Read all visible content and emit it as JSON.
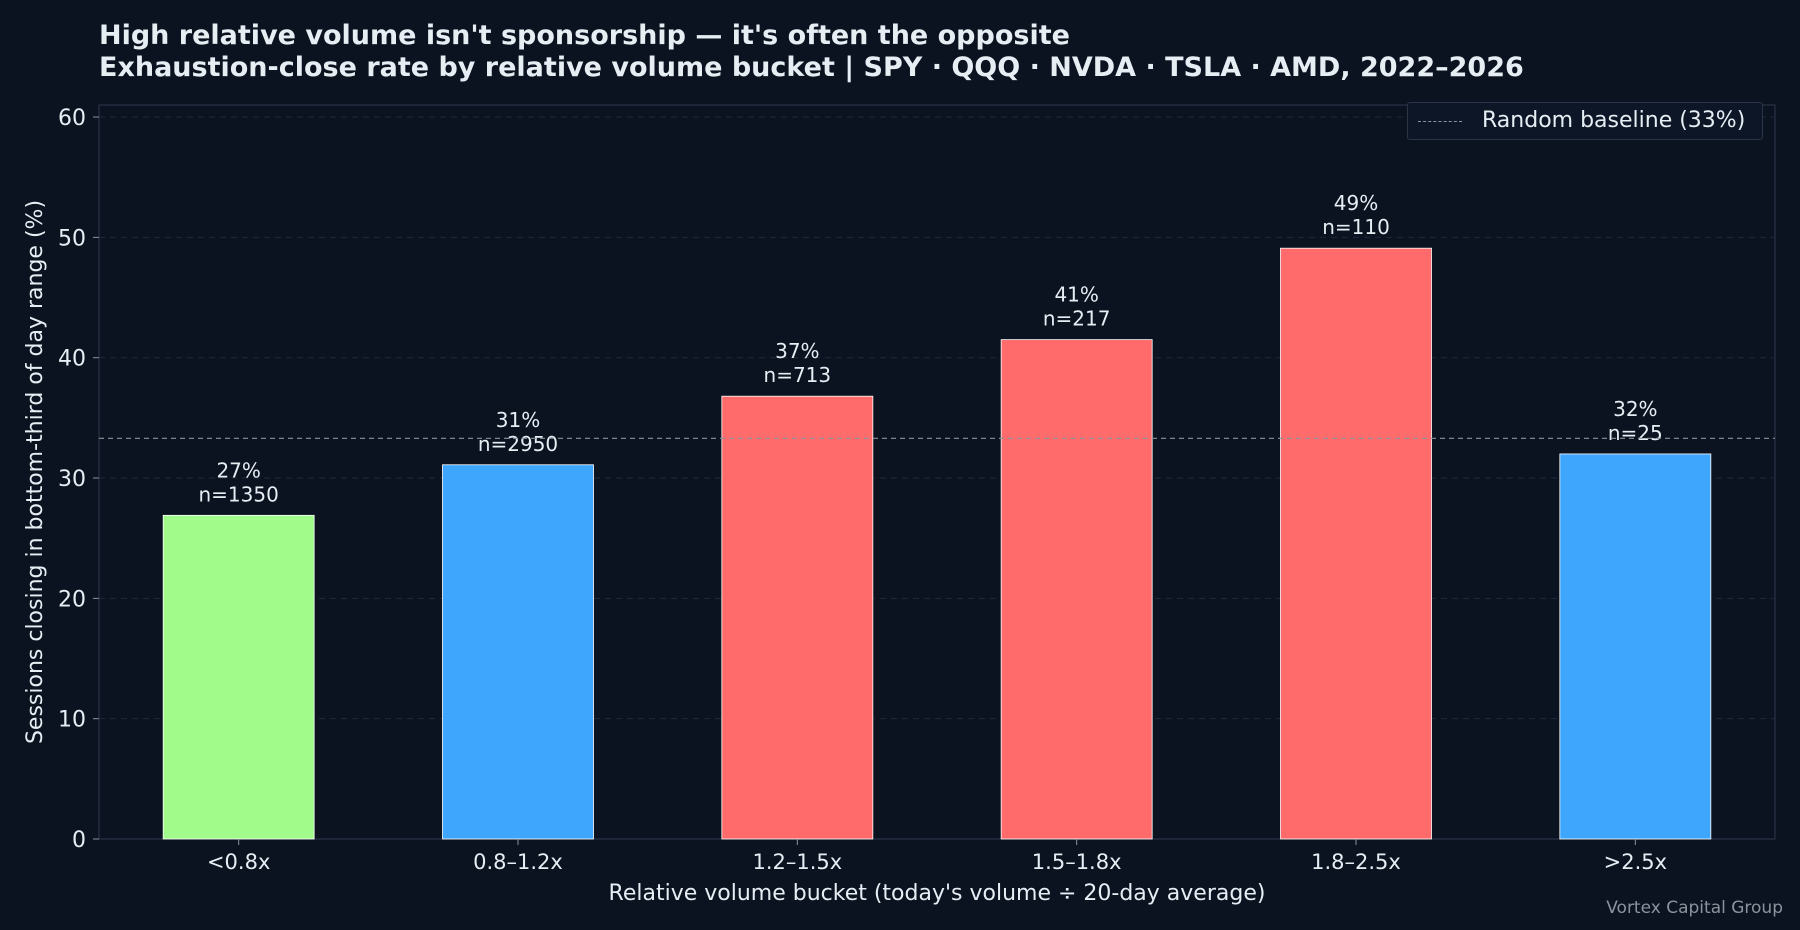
{
  "chart_data": {
    "type": "bar",
    "title": "High relative volume isn't sponsorship — it's often the opposite",
    "subtitle": "Exhaustion-close rate by relative volume bucket  |  SPY · QQQ · NVDA · TSLA · AMD, 2022–2026",
    "xlabel": "Relative volume bucket  (today's volume ÷ 20-day average)",
    "ylabel": "Sessions closing in bottom-third of day range (%)",
    "ylim": [
      0,
      61
    ],
    "yticks": [
      0,
      10,
      20,
      30,
      40,
      50,
      60
    ],
    "grid": true,
    "categories": [
      "<0.8x",
      "0.8–1.2x",
      "1.2–1.5x",
      "1.5–1.8x",
      "1.8–2.5x",
      ">2.5x"
    ],
    "values": [
      26.9,
      31.1,
      36.8,
      41.5,
      49.1,
      32.0
    ],
    "value_labels": [
      "27%",
      "31%",
      "37%",
      "41%",
      "49%",
      "32%"
    ],
    "n_labels": [
      "n=1350",
      "n=2950",
      "n=713",
      "n=217",
      "n=110",
      "n=25"
    ],
    "bar_colors": [
      "#a0fb8a",
      "#3fa6fd",
      "#ff6b6b",
      "#ff6b6b",
      "#ff6b6b",
      "#3fa6fd"
    ],
    "baseline": {
      "value": 33.3,
      "label": "Random baseline (33%)",
      "color": "#8b949e"
    },
    "legend_position": "top-right"
  },
  "credit": "Vortex Capital Group",
  "colors": {
    "background": "#0b1220",
    "text": "#e6edf3",
    "grid": "#1f2a3a",
    "axis": "#2a3546"
  }
}
